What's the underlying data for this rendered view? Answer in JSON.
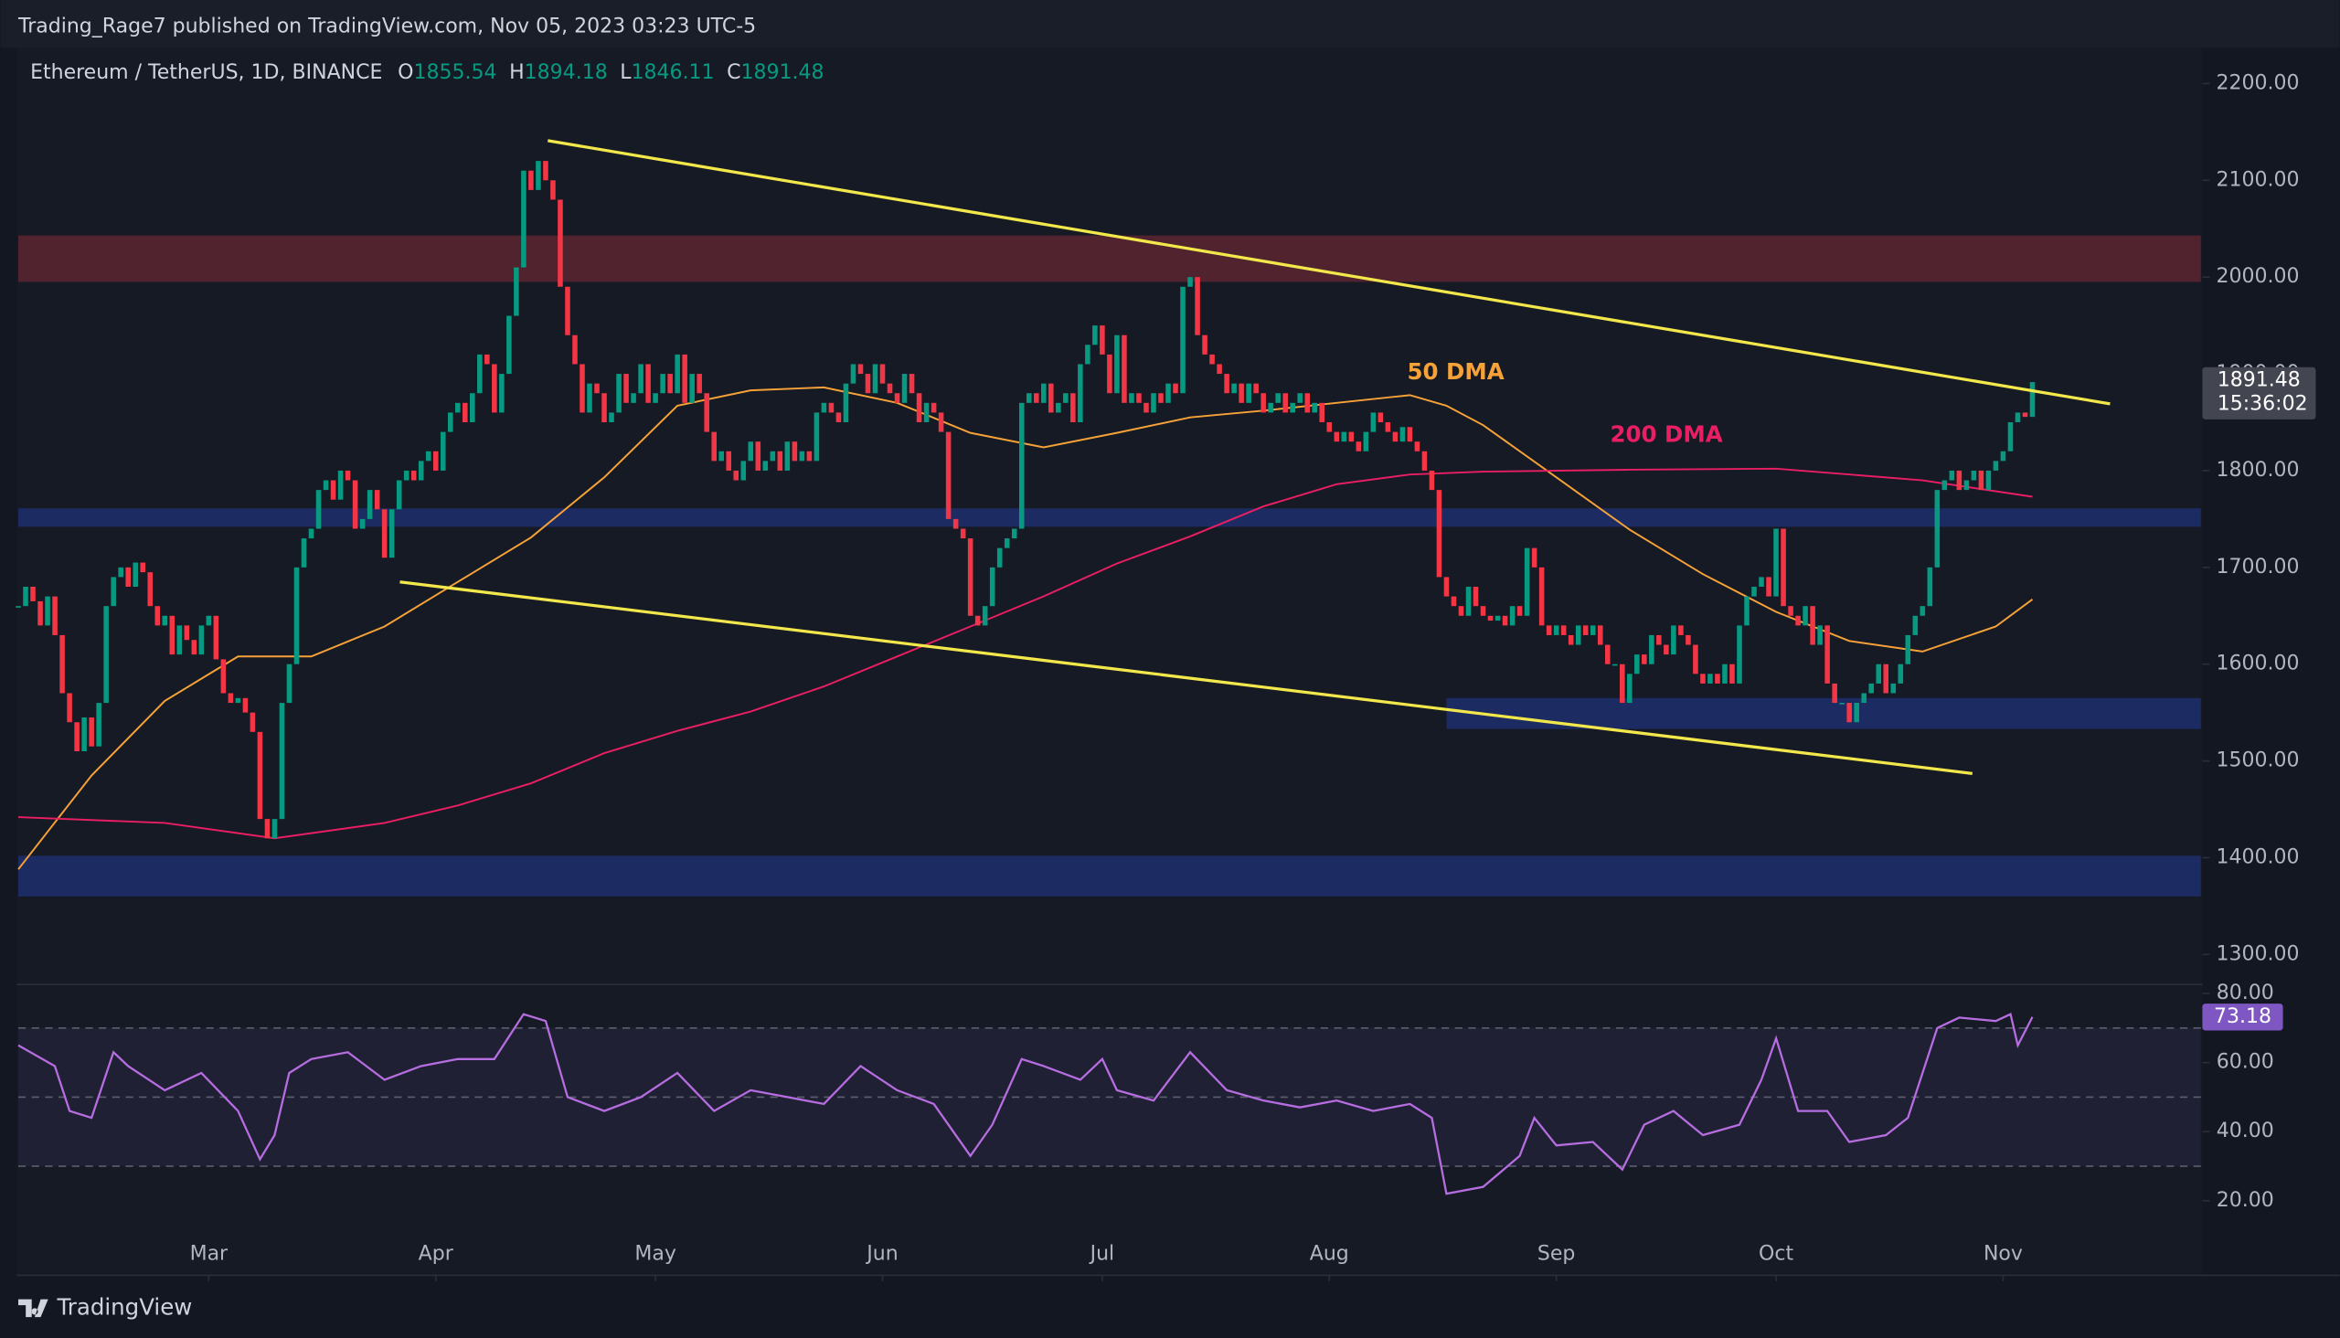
{
  "header": {
    "attribution": "Trading_Rage7 published on TradingView.com, Nov 05, 2023 03:23 UTC-5",
    "symbol": "Ethereum / TetherUS, 1D, BINANCE",
    "ohlc": [
      {
        "label": "O",
        "value": 1855.54
      },
      {
        "label": "H",
        "value": 1894.18
      },
      {
        "label": "L",
        "value": 1846.11
      },
      {
        "label": "C",
        "value": 1891.48
      }
    ]
  },
  "footer": {
    "brand": "TradingView"
  },
  "chart_data": {
    "type": "candlestick",
    "up_color": "#089981",
    "down_color": "#f23645",
    "xlim": [
      0,
      298
    ],
    "xticks": [
      {
        "value": 26,
        "label": "Mar"
      },
      {
        "value": 57,
        "label": "Apr"
      },
      {
        "value": 87,
        "label": "May"
      },
      {
        "value": 118,
        "label": "Jun"
      },
      {
        "value": 148,
        "label": "Jul"
      },
      {
        "value": 179,
        "label": "Aug"
      },
      {
        "value": 210,
        "label": "Sep"
      },
      {
        "value": 240,
        "label": "Oct"
      },
      {
        "value": 271,
        "label": "Nov"
      }
    ],
    "ylim": [
      1269,
      2237
    ],
    "yticks": [
      {
        "value": 2200,
        "label": "2200.00"
      },
      {
        "value": 2100,
        "label": "2100.00"
      },
      {
        "value": 2000,
        "label": "2000.00"
      },
      {
        "value": 1900,
        "label": "1900.00"
      },
      {
        "value": 1800,
        "label": "1800.00"
      },
      {
        "value": 1700,
        "label": "1700.00"
      },
      {
        "value": 1600,
        "label": "1600.00"
      },
      {
        "value": 1500,
        "label": "1500.00"
      },
      {
        "value": 1400,
        "label": "1400.00"
      },
      {
        "value": 1300,
        "label": "1300.00"
      }
    ],
    "values": [
      1660,
      1680,
      1665,
      1640,
      1670,
      1630,
      1570,
      1540,
      1510,
      1545,
      1515,
      1560,
      1660,
      1690,
      1700,
      1680,
      1705,
      1695,
      1660,
      1640,
      1650,
      1610,
      1640,
      1625,
      1610,
      1640,
      1650,
      1605,
      1570,
      1560,
      1565,
      1550,
      1530,
      1440,
      1420,
      1440,
      1560,
      1600,
      1700,
      1730,
      1740,
      1780,
      1790,
      1770,
      1800,
      1790,
      1740,
      1750,
      1780,
      1760,
      1710,
      1760,
      1790,
      1800,
      1790,
      1810,
      1820,
      1800,
      1840,
      1860,
      1870,
      1850,
      1880,
      1920,
      1910,
      1860,
      1900,
      1960,
      2010,
      2110,
      2090,
      2120,
      2100,
      2080,
      1990,
      1940,
      1910,
      1860,
      1890,
      1880,
      1850,
      1860,
      1900,
      1870,
      1880,
      1910,
      1870,
      1880,
      1900,
      1880,
      1920,
      1870,
      1900,
      1880,
      1840,
      1810,
      1820,
      1800,
      1790,
      1810,
      1830,
      1800,
      1810,
      1820,
      1800,
      1830,
      1810,
      1820,
      1810,
      1860,
      1870,
      1860,
      1850,
      1890,
      1910,
      1900,
      1880,
      1910,
      1890,
      1880,
      1870,
      1900,
      1880,
      1850,
      1870,
      1860,
      1840,
      1750,
      1740,
      1730,
      1650,
      1640,
      1660,
      1700,
      1720,
      1730,
      1740,
      1870,
      1880,
      1870,
      1890,
      1860,
      1870,
      1880,
      1850,
      1910,
      1930,
      1950,
      1920,
      1880,
      1940,
      1870,
      1880,
      1870,
      1860,
      1880,
      1870,
      1890,
      1880,
      1990,
      2000,
      1940,
      1920,
      1910,
      1900,
      1880,
      1890,
      1870,
      1890,
      1880,
      1860,
      1870,
      1880,
      1860,
      1870,
      1880,
      1860,
      1870,
      1850,
      1840,
      1830,
      1840,
      1830,
      1820,
      1840,
      1860,
      1850,
      1840,
      1830,
      1845,
      1830,
      1820,
      1800,
      1780,
      1690,
      1670,
      1660,
      1650,
      1680,
      1660,
      1650,
      1645,
      1650,
      1640,
      1660,
      1650,
      1720,
      1700,
      1640,
      1630,
      1640,
      1630,
      1620,
      1640,
      1630,
      1640,
      1620,
      1600,
      1600,
      1560,
      1590,
      1610,
      1600,
      1630,
      1620,
      1610,
      1640,
      1630,
      1620,
      1590,
      1580,
      1590,
      1580,
      1600,
      1580,
      1640,
      1670,
      1680,
      1690,
      1670,
      1740,
      1660,
      1650,
      1640,
      1660,
      1620,
      1640,
      1580,
      1560,
      1560,
      1540,
      1560,
      1570,
      1580,
      1600,
      1570,
      1580,
      1600,
      1630,
      1650,
      1660,
      1700,
      1780,
      1790,
      1800,
      1780,
      1790,
      1800,
      1780,
      1800,
      1810,
      1820,
      1850,
      1860,
      1855.54,
      1891.48
    ],
    "countdown": "15:36:02",
    "series": [
      {
        "name": "50 DMA",
        "color": "#f7a238",
        "x": [
          0,
          10,
          20,
          30,
          40,
          50,
          60,
          70,
          80,
          90,
          100,
          110,
          120,
          130,
          140,
          150,
          160,
          170,
          180,
          190,
          195,
          200,
          210,
          220,
          230,
          240,
          250,
          260,
          270,
          275
        ],
        "values": [
          1388,
          1485,
          1562,
          1608,
          1608,
          1639,
          1685,
          1731,
          1793,
          1867,
          1883,
          1886,
          1870,
          1839,
          1824,
          1839,
          1855,
          1862,
          1870,
          1878,
          1867,
          1847,
          1793,
          1739,
          1693,
          1654,
          1624,
          1613,
          1639,
          1667
        ]
      },
      {
        "name": "200 DMA",
        "color": "#e91e63",
        "x": [
          0,
          20,
          35,
          50,
          60,
          70,
          80,
          90,
          100,
          110,
          120,
          130,
          140,
          150,
          160,
          170,
          180,
          190,
          200,
          220,
          240,
          260,
          275
        ],
        "values": [
          1442,
          1436,
          1420,
          1436,
          1454,
          1477,
          1508,
          1531,
          1551,
          1577,
          1608,
          1639,
          1670,
          1704,
          1732,
          1763,
          1786,
          1796,
          1799,
          1801,
          1802,
          1790,
          1773
        ]
      }
    ],
    "zones": [
      {
        "x": [
          0,
          298
        ],
        "ylim": [
          1995,
          2043
        ],
        "color": "#5a2630"
      },
      {
        "x": [
          0,
          298
        ],
        "ylim": [
          1742,
          1761
        ],
        "color": "#1f2f6e"
      },
      {
        "x": [
          195,
          298
        ],
        "ylim": [
          1533,
          1565
        ],
        "color": "#1f2f6e"
      },
      {
        "x": [
          0,
          298
        ],
        "ylim": [
          1360,
          1402
        ],
        "color": "#1f2f6e"
      }
    ],
    "trendlines": [
      {
        "x": [
          72.3,
          285.6
        ],
        "y": [
          2141,
          1869
        ],
        "color": "#f2e74b"
      },
      {
        "x": [
          52.1,
          266.8
        ],
        "y": [
          1685,
          1487
        ],
        "color": "#f2e74b"
      }
    ],
    "rsi": {
      "type": "line",
      "color": "#b66de0",
      "ylim": [
        -1.6,
        82.6
      ],
      "yticks": [
        {
          "value": 80,
          "label": "80.00"
        },
        {
          "value": 60,
          "label": "60.00"
        },
        {
          "value": 40,
          "label": "40.00"
        },
        {
          "value": 20,
          "label": "20.00"
        }
      ],
      "bands": [
        30,
        50,
        70
      ],
      "x": [
        0,
        5,
        7,
        10,
        13,
        15,
        20,
        25,
        30,
        33,
        35,
        37,
        40,
        45,
        50,
        55,
        60,
        65,
        69,
        72,
        75,
        80,
        85,
        90,
        95,
        100,
        105,
        110,
        115,
        120,
        125,
        128,
        130,
        133,
        137,
        140,
        145,
        148,
        150,
        155,
        160,
        165,
        170,
        175,
        180,
        185,
        190,
        193,
        195,
        200,
        205,
        207,
        210,
        215,
        219,
        222,
        226,
        230,
        235,
        238,
        240,
        243,
        247,
        250,
        255,
        258,
        262,
        265,
        270,
        272,
        273,
        275
      ],
      "values": [
        65,
        59,
        46,
        44,
        63,
        59,
        52,
        57,
        46,
        32,
        39,
        57,
        61,
        63,
        55,
        59,
        61,
        61,
        74,
        72,
        50,
        46,
        50,
        57,
        46,
        52,
        50,
        48,
        59,
        52,
        48,
        39,
        33,
        42,
        61,
        59,
        55,
        61,
        52,
        49,
        63,
        52,
        49,
        47,
        49,
        46,
        48,
        44,
        22,
        24,
        33,
        44,
        36,
        37,
        29,
        42,
        46,
        39,
        42,
        55,
        67,
        46,
        46,
        37,
        39,
        44,
        70,
        73,
        72,
        74,
        65,
        73.18
      ]
    }
  }
}
